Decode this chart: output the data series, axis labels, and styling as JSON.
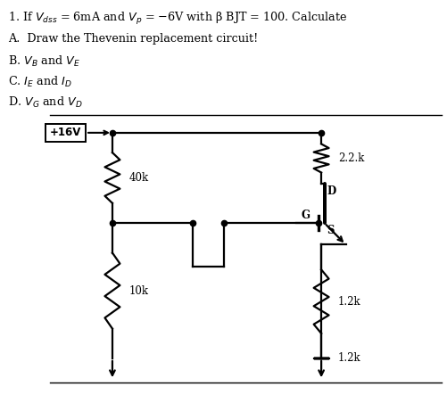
{
  "title_line1": "1. If $V_{dss}$ = 6mA and $V_p$ = −6V with β BJT = 100. Calculate",
  "line_A": "A.  Draw the Thevenin replacement circuit!",
  "line_B": "B. $V_B$ and $V_E$",
  "line_C": "C. $I_E$ and $I_D$",
  "line_D": "D. $V_G$ and $V_D$",
  "supply_label": "+16V",
  "R1_label": "40k",
  "R2_label": "10k",
  "RD_label": "2.2.k",
  "RS_label": "1.2k",
  "G_label": "G",
  "D_label": "D",
  "S_label": "S",
  "bg_color": "#ffffff",
  "line_color": "#000000",
  "text_color": "#000000"
}
